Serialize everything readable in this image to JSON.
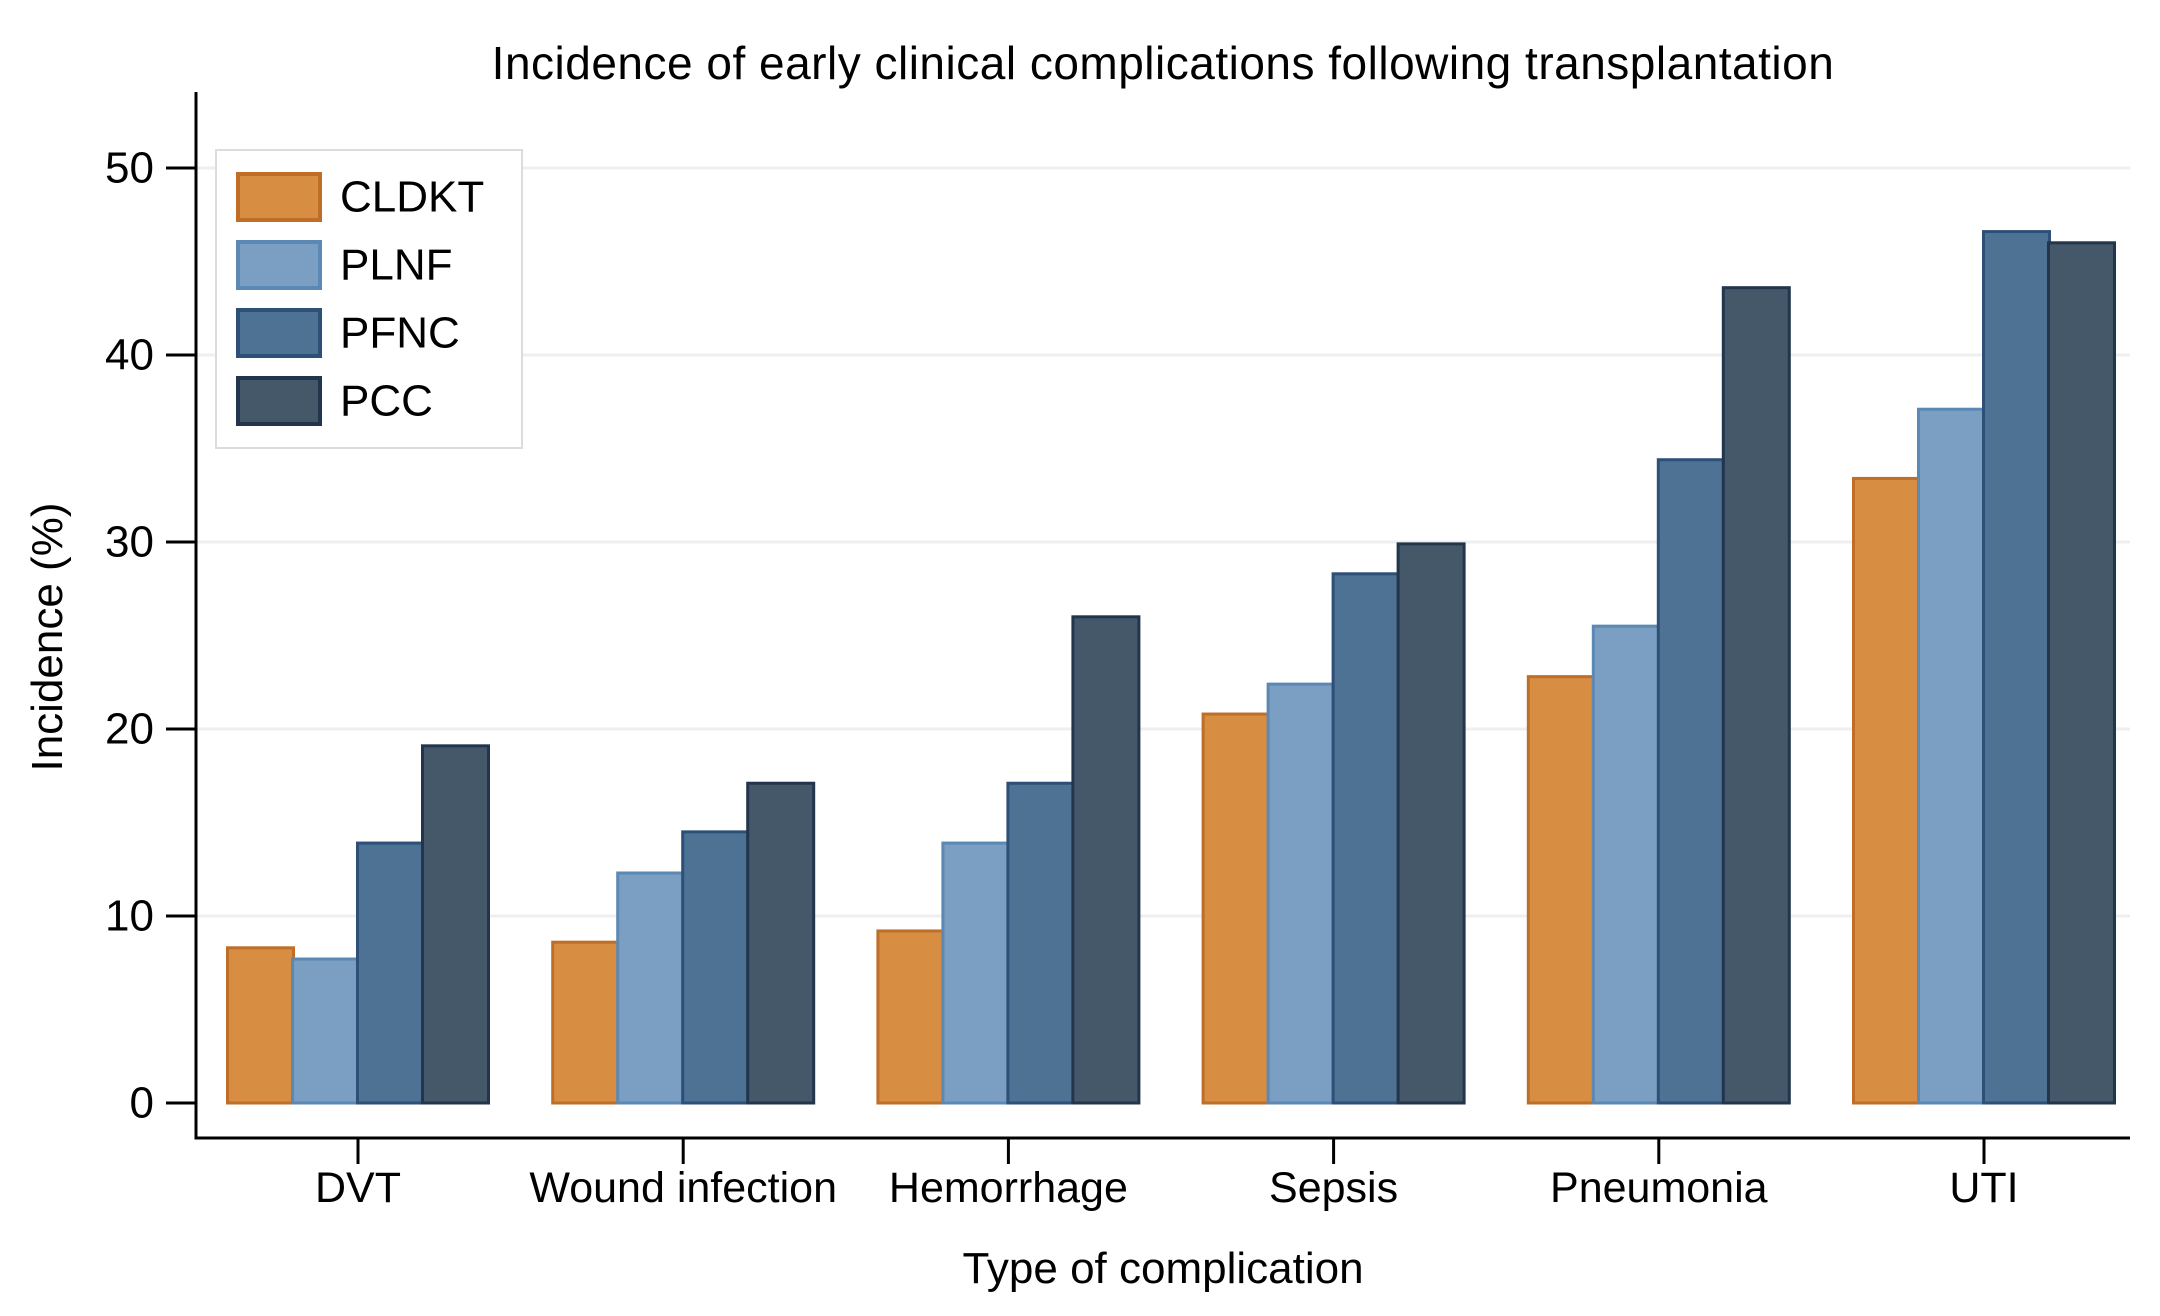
{
  "page": {
    "background_color": "#FFFFFF"
  },
  "chart_data": {
    "type": "bar",
    "title": "Incidence of early clinical complications following transplantation",
    "xlabel": "Type of complication",
    "ylabel": "Incidence (%)",
    "categories": [
      "DVT",
      "Wound infection",
      "Hemorrhage",
      "Sepsis",
      "Pneumonia",
      "UTI"
    ],
    "series": [
      {
        "name": "CLDKT",
        "fill": "#D78E43",
        "stroke": "#BF6E28",
        "values": [
          8.3,
          8.6,
          9.2,
          20.8,
          22.8,
          33.4
        ]
      },
      {
        "name": "PLNF",
        "fill": "#7A9FC2",
        "stroke": "#5C88B4",
        "values": [
          7.7,
          12.3,
          13.9,
          22.4,
          25.5,
          37.1
        ]
      },
      {
        "name": "PFNC",
        "fill": "#4D7294",
        "stroke": "#2E4F77",
        "values": [
          13.9,
          14.5,
          17.1,
          28.3,
          34.4,
          46.6
        ]
      },
      {
        "name": "PCC",
        "fill": "#45586A",
        "stroke": "#22354C",
        "values": [
          19.1,
          17.1,
          26.0,
          29.9,
          43.6,
          46.0
        ]
      }
    ],
    "ylim": [
      0,
      50
    ],
    "yticks": [
      0,
      10,
      20,
      30,
      40,
      50
    ],
    "grid": true,
    "grid_color": "#EFEFEF",
    "axis_color": "#000000",
    "text_color": "#000000",
    "legend_position": "top-left",
    "legend_border_color": "#DCDCDC",
    "legend_background": "#FFFFFF"
  }
}
